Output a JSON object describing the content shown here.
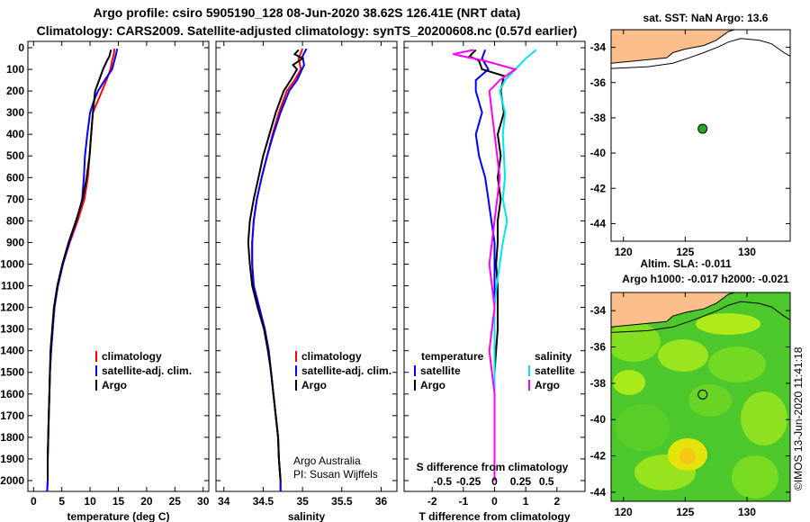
{
  "title": {
    "line1": "Argo profile: csiro 5905190_128 08-Jun-2020 38.62S 126.41E (NRT data)",
    "line2": "Climatology: CARS2009. Satellite-adjusted climatology: synTS_20200608.nc (0.57d earlier)"
  },
  "colors": {
    "climatology": "#ff0000",
    "satellite": "#0000ff",
    "argo": "#000000",
    "sat_salinity": "#00e5ee",
    "argo_salinity": "#ff00ff",
    "land": "#fcbf8c"
  },
  "chart_data": [
    {
      "type": "line",
      "name": "temperature",
      "xlabel": "temperature (deg C)",
      "ylabel": "",
      "xlim": [
        -1,
        31
      ],
      "ylim": [
        2050,
        0
      ],
      "xticks": [
        "0",
        "5",
        "10",
        "15",
        "20",
        "25",
        "30"
      ],
      "yticks": [
        "0",
        "100",
        "200",
        "300",
        "400",
        "500",
        "600",
        "700",
        "800",
        "900",
        "1000",
        "1100",
        "1200",
        "1300",
        "1400",
        "1500",
        "1600",
        "1700",
        "1800",
        "1900",
        "2000"
      ],
      "legend": [
        "climatology",
        "satellite-adj. clim.",
        "Argo"
      ],
      "series": [
        {
          "name": "climatology",
          "color": "#ff0000",
          "points": [
            [
              14.3,
              5
            ],
            [
              14.2,
              30
            ],
            [
              13.9,
              60
            ],
            [
              13.6,
              100
            ],
            [
              12.9,
              150
            ],
            [
              12.1,
              200
            ],
            [
              11.3,
              250
            ],
            [
              10.5,
              300
            ],
            [
              10.2,
              400
            ],
            [
              9.9,
              500
            ],
            [
              9.6,
              600
            ],
            [
              9.0,
              700
            ],
            [
              7.8,
              800
            ],
            [
              6.4,
              900
            ],
            [
              5.2,
              1000
            ],
            [
              4.3,
              1100
            ],
            [
              3.7,
              1200
            ],
            [
              3.4,
              1300
            ],
            [
              3.1,
              1400
            ],
            [
              2.9,
              1500
            ],
            [
              2.8,
              1600
            ],
            [
              2.7,
              1700
            ],
            [
              2.6,
              1800
            ],
            [
              2.5,
              1900
            ],
            [
              2.5,
              2000
            ],
            [
              2.4,
              2050
            ]
          ]
        },
        {
          "name": "satellite-adj. clim.",
          "color": "#0000ff",
          "points": [
            [
              14.8,
              5
            ],
            [
              14.6,
              30
            ],
            [
              14.3,
              60
            ],
            [
              13.9,
              100
            ],
            [
              12.6,
              150
            ],
            [
              11.4,
              200
            ],
            [
              10.6,
              250
            ],
            [
              10.0,
              300
            ],
            [
              9.5,
              400
            ],
            [
              9.1,
              500
            ],
            [
              8.9,
              600
            ],
            [
              8.6,
              700
            ],
            [
              7.6,
              800
            ],
            [
              6.3,
              900
            ],
            [
              5.2,
              1000
            ],
            [
              4.3,
              1100
            ],
            [
              3.7,
              1200
            ],
            [
              3.4,
              1300
            ],
            [
              3.1,
              1400
            ],
            [
              2.9,
              1500
            ],
            [
              2.8,
              1600
            ],
            [
              2.7,
              1700
            ],
            [
              2.6,
              1800
            ],
            [
              2.5,
              1900
            ],
            [
              2.5,
              2000
            ],
            [
              2.4,
              2050
            ]
          ]
        },
        {
          "name": "Argo",
          "color": "#000000",
          "points": [
            [
              13.7,
              10
            ],
            [
              13.4,
              40
            ],
            [
              13.0,
              60
            ],
            [
              12.3,
              100
            ],
            [
              11.6,
              150
            ],
            [
              10.9,
              200
            ],
            [
              10.5,
              300
            ],
            [
              10.2,
              400
            ],
            [
              9.9,
              500
            ],
            [
              9.4,
              600
            ],
            [
              8.7,
              700
            ],
            [
              7.5,
              800
            ],
            [
              6.2,
              900
            ],
            [
              5.1,
              1000
            ],
            [
              4.2,
              1100
            ],
            [
              3.6,
              1200
            ],
            [
              3.3,
              1300
            ],
            [
              3.0,
              1400
            ],
            [
              2.9,
              1500
            ],
            [
              2.8,
              1600
            ],
            [
              2.7,
              1700
            ],
            [
              2.6,
              1800
            ],
            [
              2.5,
              1900
            ],
            [
              2.5,
              2000
            ]
          ]
        }
      ]
    },
    {
      "type": "line",
      "name": "salinity",
      "xlabel": "salinity",
      "xlim": [
        33.9,
        36.2
      ],
      "ylim": [
        2050,
        0
      ],
      "xticks": [
        "34",
        "34.5",
        "35",
        "35.5",
        "36"
      ],
      "legend": [
        "climatology",
        "satellite-adj. clim.",
        "Argo"
      ],
      "annotation": [
        "Argo Australia",
        "PI: Susan Wijffels"
      ],
      "series": [
        {
          "name": "climatology",
          "color": "#ff0000",
          "points": [
            [
              35.0,
              5
            ],
            [
              34.95,
              50
            ],
            [
              34.98,
              100
            ],
            [
              34.9,
              150
            ],
            [
              34.8,
              200
            ],
            [
              34.7,
              300
            ],
            [
              34.62,
              400
            ],
            [
              34.55,
              500
            ],
            [
              34.48,
              600
            ],
            [
              34.42,
              700
            ],
            [
              34.38,
              800
            ],
            [
              34.36,
              900
            ],
            [
              34.36,
              1000
            ],
            [
              34.38,
              1100
            ],
            [
              34.45,
              1200
            ],
            [
              34.52,
              1300
            ],
            [
              34.57,
              1400
            ],
            [
              34.6,
              1500
            ],
            [
              34.63,
              1600
            ],
            [
              34.66,
              1700
            ],
            [
              34.69,
              1800
            ],
            [
              34.7,
              1900
            ],
            [
              34.72,
              2000
            ],
            [
              34.72,
              2050
            ]
          ]
        },
        {
          "name": "satellite-adj. clim.",
          "color": "#0000ff",
          "points": [
            [
              35.05,
              5
            ],
            [
              35.0,
              40
            ],
            [
              35.02,
              80
            ],
            [
              34.93,
              150
            ],
            [
              34.83,
              200
            ],
            [
              34.72,
              300
            ],
            [
              34.63,
              400
            ],
            [
              34.55,
              500
            ],
            [
              34.48,
              600
            ],
            [
              34.42,
              700
            ],
            [
              34.38,
              800
            ],
            [
              34.36,
              900
            ],
            [
              34.36,
              1000
            ],
            [
              34.38,
              1100
            ],
            [
              34.45,
              1200
            ],
            [
              34.52,
              1300
            ],
            [
              34.57,
              1400
            ],
            [
              34.6,
              1500
            ],
            [
              34.63,
              1600
            ],
            [
              34.66,
              1700
            ],
            [
              34.69,
              1800
            ],
            [
              34.7,
              1900
            ],
            [
              34.72,
              2000
            ],
            [
              34.72,
              2050
            ]
          ]
        },
        {
          "name": "Argo",
          "color": "#000000",
          "points": [
            [
              34.95,
              10
            ],
            [
              34.9,
              30
            ],
            [
              35.0,
              50
            ],
            [
              34.88,
              80
            ],
            [
              34.93,
              100
            ],
            [
              34.85,
              150
            ],
            [
              34.76,
              200
            ],
            [
              34.66,
              300
            ],
            [
              34.58,
              400
            ],
            [
              34.5,
              500
            ],
            [
              34.44,
              600
            ],
            [
              34.38,
              700
            ],
            [
              34.33,
              800
            ],
            [
              34.31,
              900
            ],
            [
              34.33,
              1000
            ],
            [
              34.36,
              1100
            ],
            [
              34.43,
              1200
            ],
            [
              34.51,
              1300
            ],
            [
              34.56,
              1400
            ],
            [
              34.6,
              1500
            ],
            [
              34.63,
              1600
            ],
            [
              34.66,
              1700
            ],
            [
              34.69,
              1800
            ],
            [
              34.7,
              1900
            ],
            [
              34.72,
              2000
            ]
          ]
        }
      ]
    },
    {
      "type": "line",
      "name": "difference from climatology",
      "xlabel": "T difference from climatology",
      "xlabel_top": "S difference from climatology",
      "xlim": [
        -2.9,
        2.9
      ],
      "ylim": [
        2050,
        0
      ],
      "xticks": [
        "-2",
        "-1",
        "0",
        "1",
        "2"
      ],
      "xticks_s": [
        "-0.5",
        "-0.25",
        "0",
        "0.25",
        "0.5"
      ],
      "legend_t_title": "temperature",
      "legend_s_title": "salinity",
      "legend_t": [
        "satellite",
        "Argo"
      ],
      "legend_s": [
        "satellite",
        "Argo"
      ],
      "series": [
        {
          "name": "T satellite",
          "color": "#0000ff",
          "points": [
            [
              -0.3,
              10
            ],
            [
              -0.4,
              50
            ],
            [
              -0.2,
              100
            ],
            [
              -0.6,
              150
            ],
            [
              -0.6,
              200
            ],
            [
              -0.4,
              300
            ],
            [
              -0.6,
              400
            ],
            [
              -0.5,
              500
            ],
            [
              -0.3,
              600
            ],
            [
              -0.2,
              700
            ],
            [
              -0.1,
              800
            ],
            [
              0,
              900
            ],
            [
              0,
              1000
            ],
            [
              0,
              1100
            ],
            [
              0,
              1200
            ],
            [
              0,
              1300
            ],
            [
              0,
              2000
            ]
          ]
        },
        {
          "name": "T Argo",
          "color": "#000000",
          "points": [
            [
              -0.6,
              10
            ],
            [
              -0.8,
              40
            ],
            [
              -0.5,
              60
            ],
            [
              -0.4,
              100
            ],
            [
              0.3,
              130
            ],
            [
              0.2,
              200
            ],
            [
              0.3,
              300
            ],
            [
              0.1,
              400
            ],
            [
              0.2,
              500
            ],
            [
              0.1,
              600
            ],
            [
              0.2,
              700
            ],
            [
              0.1,
              800
            ],
            [
              0.1,
              900
            ],
            [
              0.05,
              1000
            ],
            [
              0.1,
              1100
            ],
            [
              0.1,
              1200
            ],
            [
              0.1,
              1300
            ],
            [
              0.05,
              1400
            ],
            [
              0,
              1500
            ],
            [
              0,
              2000
            ]
          ]
        },
        {
          "name": "S satellite",
          "color": "#00e5ee",
          "points": [
            [
              0.4,
              10
            ],
            [
              0.3,
              50
            ],
            [
              0.2,
              100
            ],
            [
              0.1,
              150
            ],
            [
              0.05,
              200
            ],
            [
              0.1,
              300
            ],
            [
              0.08,
              400
            ],
            [
              0.1,
              600
            ],
            [
              0.08,
              700
            ],
            [
              0.12,
              800
            ],
            [
              0.08,
              900
            ],
            [
              0.05,
              1000
            ],
            [
              0.02,
              1100
            ],
            [
              0,
              1200
            ],
            [
              0,
              2000
            ]
          ]
        },
        {
          "name": "S Argo",
          "color": "#ff00ff",
          "points": [
            [
              -0.2,
              10
            ],
            [
              -0.4,
              30
            ],
            [
              -0.1,
              60
            ],
            [
              0.2,
              100
            ],
            [
              0.05,
              150
            ],
            [
              -0.05,
              200
            ],
            [
              0,
              400
            ],
            [
              0.05,
              600
            ],
            [
              0,
              800
            ],
            [
              -0.05,
              1000
            ],
            [
              0,
              1200
            ],
            [
              -0.05,
              1400
            ],
            [
              0,
              1600
            ],
            [
              0,
              2000
            ]
          ]
        }
      ]
    },
    {
      "type": "map",
      "name": "sat SST map",
      "title": "sat. SST: NaN Argo: 13.6",
      "xlim": [
        119,
        133.5
      ],
      "ylim": [
        -45,
        -33
      ],
      "xticks": [
        "120",
        "125",
        "130"
      ],
      "yticks": [
        "-34",
        "-36",
        "-38",
        "-40",
        "-42",
        "-44"
      ],
      "profile_location": [
        126.41,
        -38.62
      ]
    },
    {
      "type": "map",
      "name": "altimetry map",
      "title_line1": "Altim. SLA: -0.011",
      "title_line2": "Argo h1000: -0.017 h2000: -0.021",
      "xlim": [
        119,
        133.5
      ],
      "ylim": [
        -44.5,
        -33
      ],
      "xticks": [
        "120",
        "125",
        "130"
      ],
      "yticks": [
        "-34",
        "-36",
        "-38",
        "-40",
        "-42",
        "-44"
      ],
      "profile_location": [
        126.41,
        -38.62
      ],
      "side_label": "©IMOS 13-Jun-2020 11:41:18"
    }
  ]
}
